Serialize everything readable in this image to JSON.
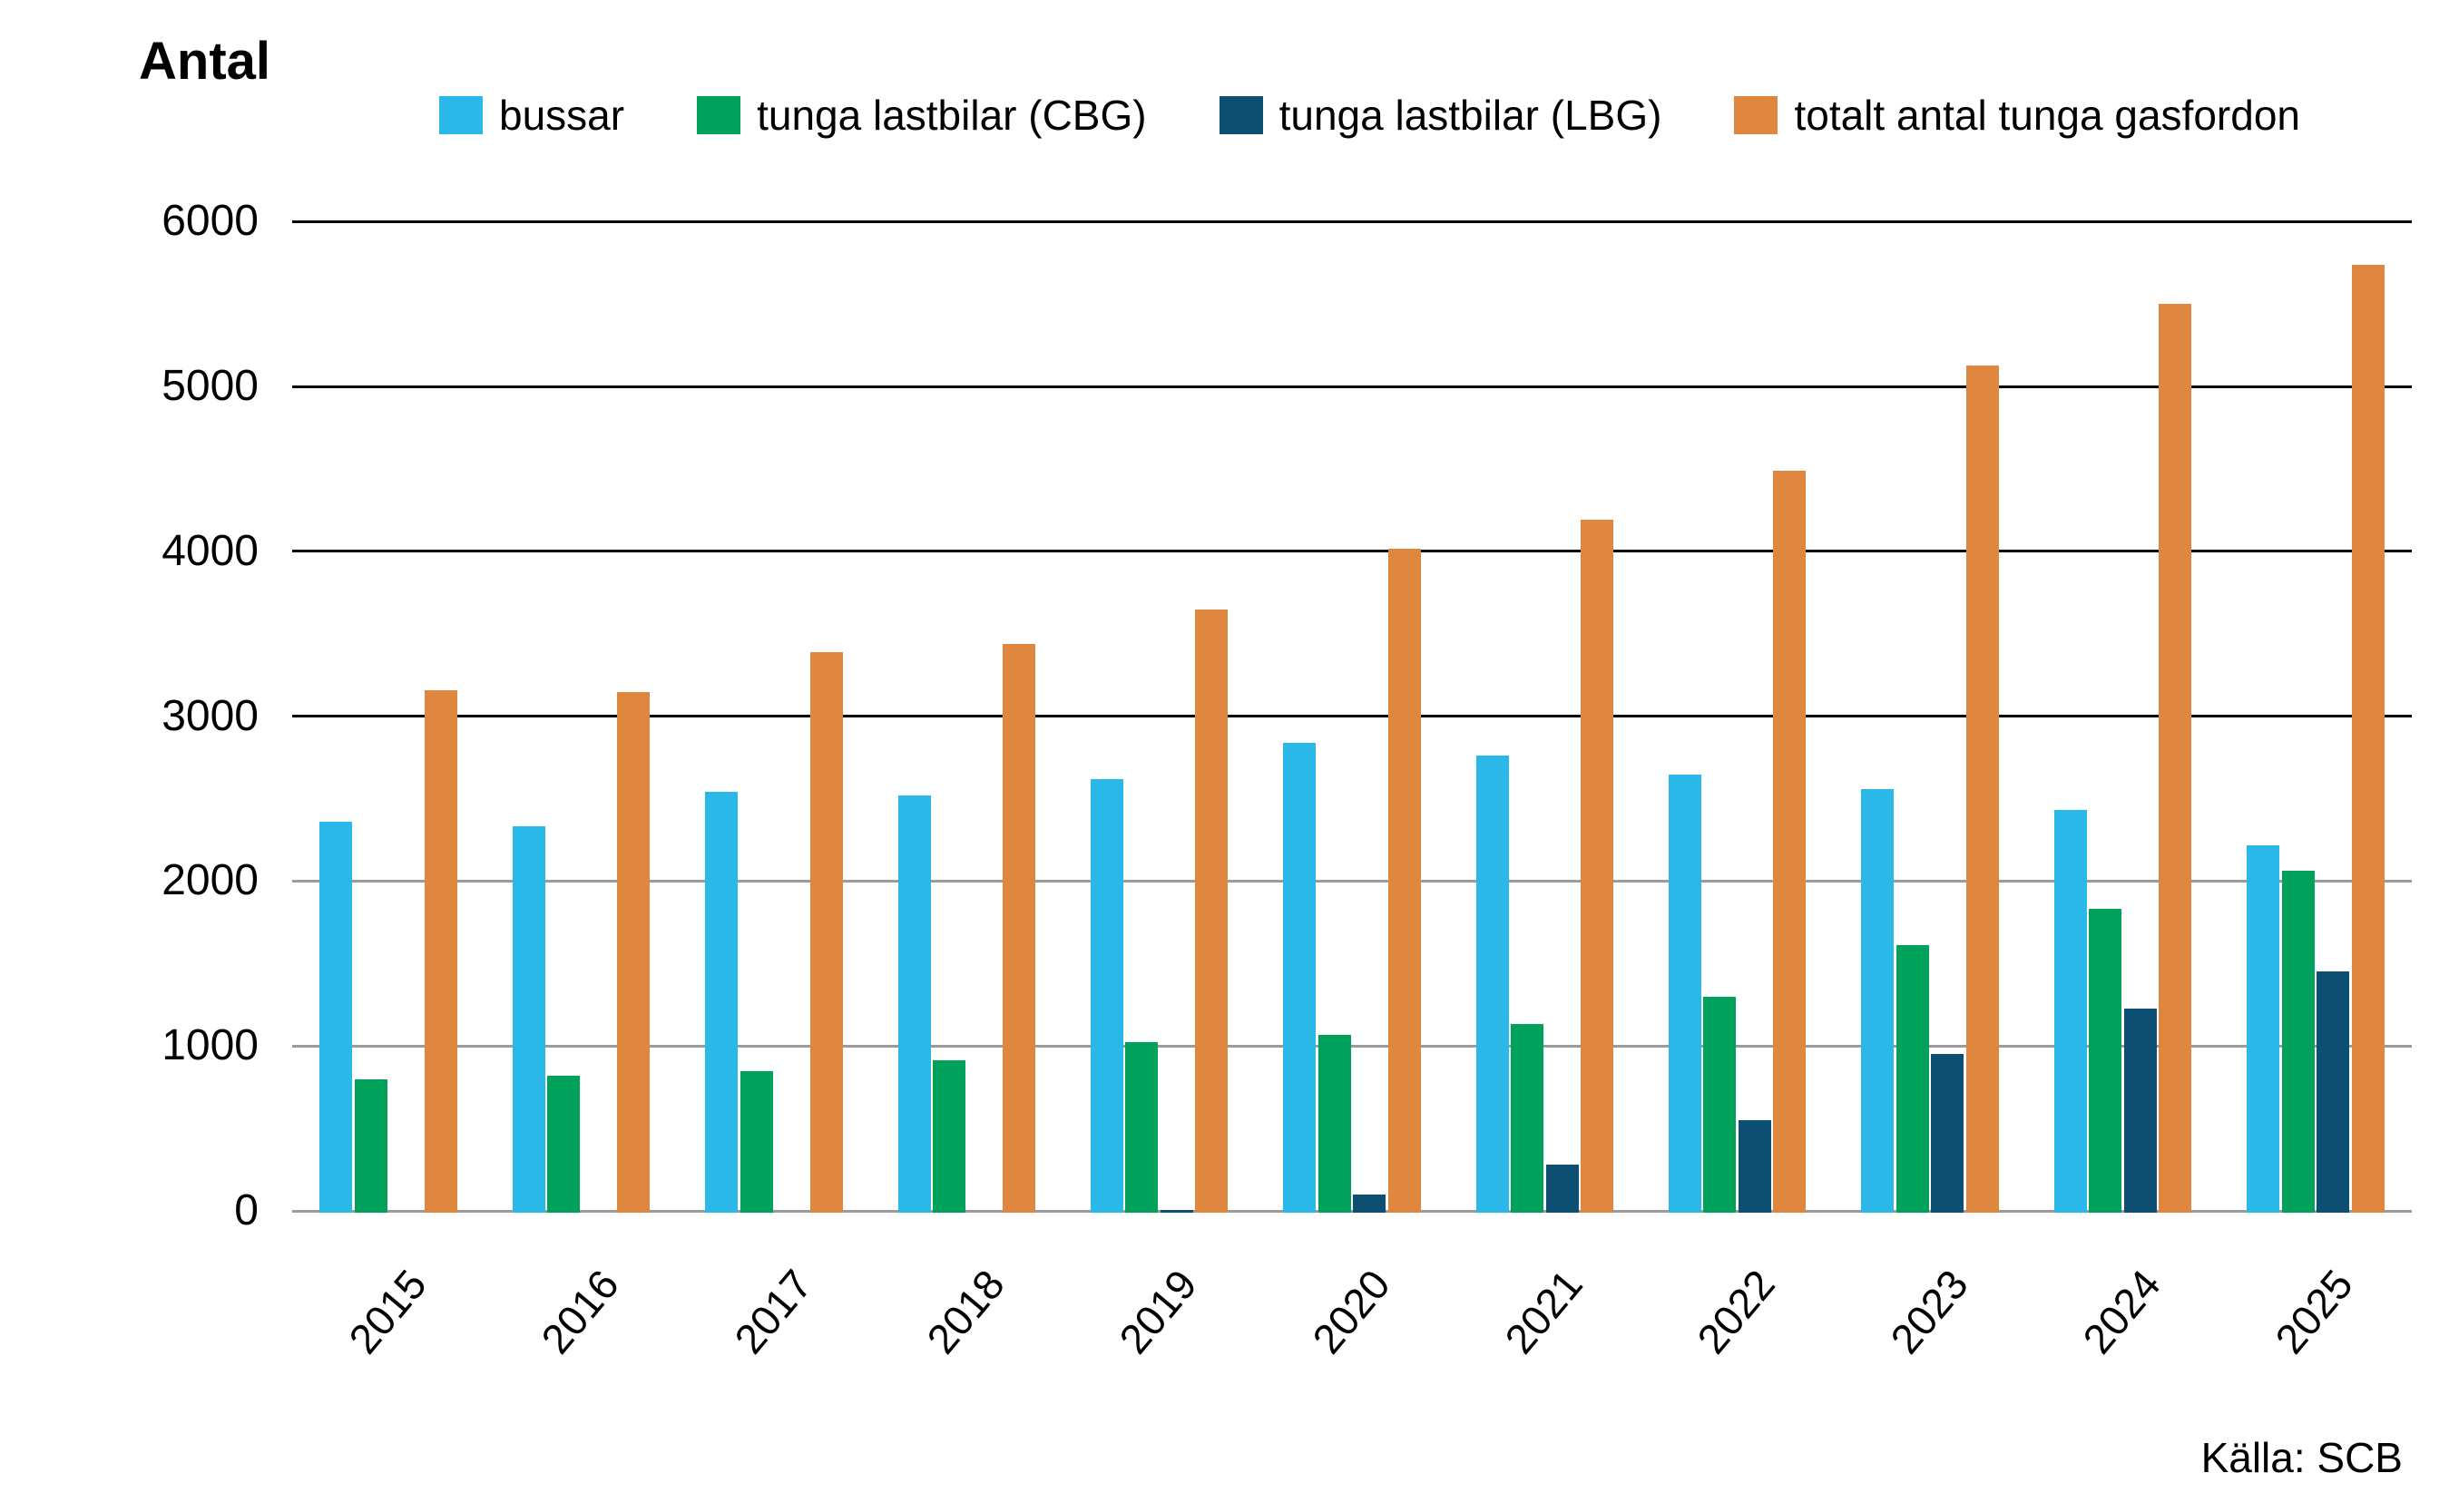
{
  "title": "Antal",
  "source": "Källa: SCB",
  "colors": {
    "grid_dark": "#000000",
    "grid_light": "#9B9B9B",
    "background": "#FFFFFF",
    "text": "#000000"
  },
  "chart_data": {
    "type": "bar",
    "title": "Antal",
    "xlabel": "",
    "ylabel": "Antal",
    "ylim": [
      0,
      6000
    ],
    "y_ticks": [
      0,
      1000,
      2000,
      3000,
      4000,
      5000,
      6000
    ],
    "grid": "horizontal",
    "legend_position": "top",
    "categories": [
      "2015",
      "2016",
      "2017",
      "2018",
      "2019",
      "2020",
      "2021",
      "2022",
      "2023",
      "2024",
      "2025"
    ],
    "series": [
      {
        "name": "bussar",
        "color": "#29B8E8",
        "values": [
          2370,
          2345,
          2550,
          2530,
          2630,
          2850,
          2775,
          2655,
          2570,
          2440,
          2230
        ]
      },
      {
        "name": "tunga lastbilar (CBG)",
        "color": "#00A15A",
        "values": [
          810,
          830,
          860,
          925,
          1035,
          1080,
          1145,
          1310,
          1620,
          1845,
          2075
        ]
      },
      {
        "name": "tunga lastbilar (LBG)",
        "color": "#0D4F73",
        "values": [
          0,
          0,
          0,
          0,
          15,
          110,
          290,
          560,
          960,
          1240,
          1465
        ]
      },
      {
        "name": "totalt antal tunga gasfordon",
        "color": "#E0873F",
        "values": [
          3170,
          3155,
          3400,
          3450,
          3660,
          4025,
          4200,
          4500,
          5140,
          5510,
          5750
        ]
      }
    ]
  }
}
